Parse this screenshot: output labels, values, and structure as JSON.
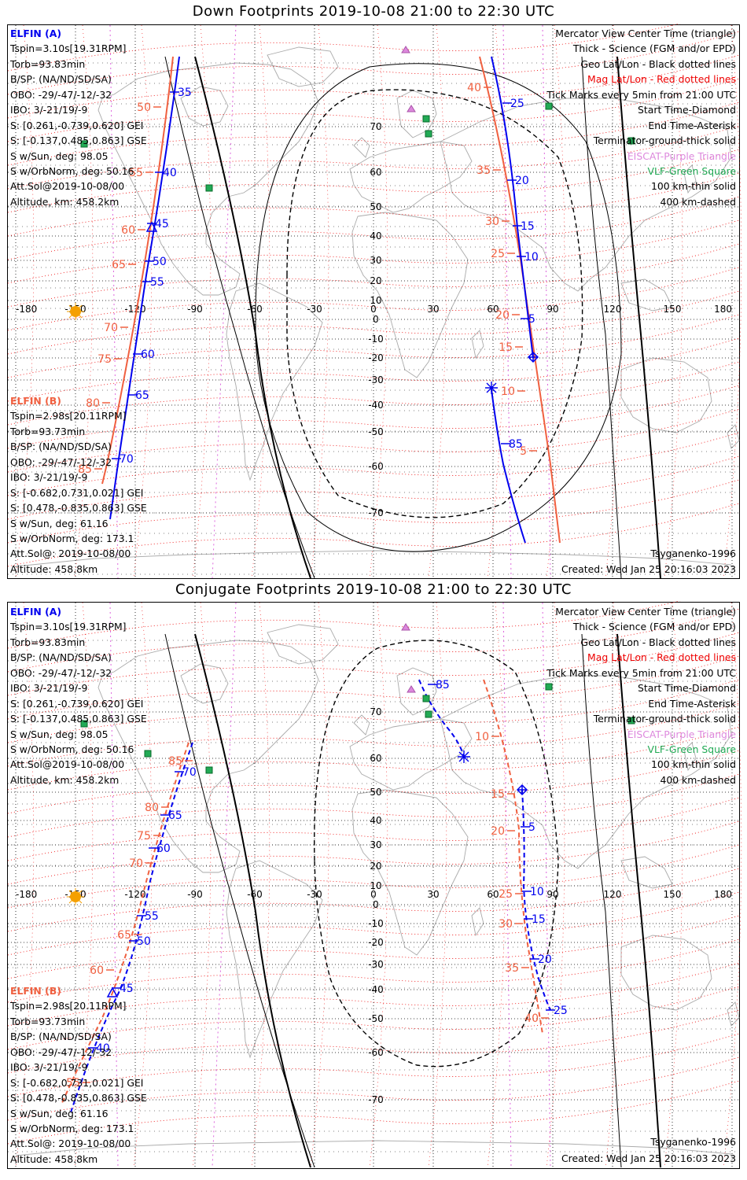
{
  "colors": {
    "elfin_a": "#0000ee",
    "elfin_b": "#f06040",
    "mag_grid": "#ee0000",
    "geo_grid": "#000000",
    "eiscat": "#dd88dd",
    "vlf": "#22aa55",
    "coast": "#aaaaaa",
    "sun": "#f5a000"
  },
  "panels": [
    {
      "title": "Down Footprints 2019-10-08 21:00 to 22:30 UTC",
      "left_a": [
        "ELFIN (A)",
        "Tspin=3.10s[19.31RPM]",
        "Torb=93.83min",
        "B/SP: (NA/ND/SD/SA)",
        "OBO: -29/-47/-12/-32",
        "IBO: 3/-21/19/-9",
        "S: [0.261,-0.739,0.620] GEI",
        "S: [-0.137,0.485,0.863] GSE",
        "S w/Sun, deg: 98.05",
        "S w/OrbNorm, deg: 50.16",
        "Att.Sol@2019-10-08/00",
        "Altitude, km: 458.2km"
      ],
      "left_b": [
        "ELFIN (B)",
        "Tspin=2.98s[20.11RPM]",
        "Torb=93.73min",
        "B/SP: (NA/ND/SD/SA)",
        "OBO: -29/-47/-12/-32",
        "IBO: 3/-21/19/-9",
        "S: [-0.682,0.731,0.021] GEI",
        "S: [0.478,-0.835,0.863] GSE",
        "S w/Sun, deg: 61.16",
        "S w/OrbNorm, deg: 173.1",
        "Att.Sol@: 2019-10-08/00",
        "Altitude: 458.8km"
      ],
      "legend": [
        "Mercator View Center Time (triangle)",
        "Thick - Science (FGM and/or EPD)",
        "Geo Lat/Lon - Black dotted lines",
        "Mag Lat/Lon - Red dotted lines",
        "Tick Marks every 5min from 21:00 UTC",
        "Start Time-Diamond",
        "End Time-Asterisk",
        "Terminator-ground-thick solid",
        "EISCAT-Purple Triangle",
        "VLF-Green Square",
        "100 km-thin solid",
        "400 km-dashed"
      ],
      "model": "Tsyganenko-1996",
      "created": "Created: Wed Jan 25 20:16:03 2023",
      "lon_labels": [
        "-180",
        "-150",
        "-120",
        "-90",
        "-60",
        "-30",
        "0",
        "30",
        "60",
        "90",
        "120",
        "150",
        "180"
      ],
      "lat_labels": [
        "70",
        "60",
        "50",
        "40",
        "30",
        "20",
        "10",
        "0",
        "-10",
        "-20",
        "-30",
        "-40",
        "-50",
        "-60",
        "-70"
      ],
      "ticks_a": [
        "35",
        "40",
        "45",
        "50",
        "55",
        "60",
        "65",
        "70",
        "25",
        "20",
        "15",
        "10",
        "5",
        "85"
      ],
      "ticks_b": [
        "50",
        "55",
        "60",
        "65",
        "70",
        "75",
        "80",
        "85",
        "40",
        "35",
        "30",
        "25",
        "20",
        "15",
        "10",
        "5"
      ]
    },
    {
      "title": "Conjugate Footprints 2019-10-08 21:00 to 22:30 UTC",
      "left_a": [
        "ELFIN (A)",
        "Tspin=3.10s[19.31RPM]",
        "Torb=93.83min",
        "B/SP: (NA/ND/SD/SA)",
        "OBO: -29/-47/-12/-32",
        "IBO: 3/-21/19/-9",
        "S: [0.261,-0.739,0.620] GEI",
        "S: [-0.137,0.485,0.863] GSE",
        "S w/Sun, deg: 98.05",
        "S w/OrbNorm, deg: 50.16",
        "Att.Sol@2019-10-08/00",
        "Altitude, km: 458.2km"
      ],
      "left_b": [
        "ELFIN (B)",
        "Tspin=2.98s[20.11RPM]",
        "Torb=93.73min",
        "B/SP: (NA/ND/SD/SA)",
        "OBO: -29/-47/-12/-32",
        "IBO: 3/-21/19/-9",
        "S: [-0.682,0.731,0.021] GEI",
        "S: [0.478,-0.835,0.863] GSE",
        "S w/Sun, deg: 61.16",
        "S w/OrbNorm, deg: 173.1",
        "Att.Sol@: 2019-10-08/00",
        "Altitude: 458.8km"
      ],
      "legend": [
        "Mercator View Center Time (triangle)",
        "Thick - Science (FGM and/or EPD)",
        "Geo Lat/Lon - Black dotted lines",
        "Mag Lat/Lon - Red dotted lines",
        "Tick Marks every 5min from 21:00 UTC",
        "Start Time-Diamond",
        "End Time-Asterisk",
        "Terminator-ground-thick solid",
        "EISCAT-Purple Triangle",
        "VLF-Green Square",
        "100 km-thin solid",
        "400 km-dashed"
      ],
      "model": "Tsyganenko-1996",
      "created": "Created: Wed Jan 25 20:16:03 2023",
      "lon_labels": [
        "-180",
        "-150",
        "-120",
        "-90",
        "-60",
        "-30",
        "0",
        "30",
        "60",
        "90",
        "120",
        "150",
        "180"
      ],
      "lat_labels": [
        "70",
        "60",
        "50",
        "40",
        "30",
        "20",
        "10",
        "0",
        "-10",
        "-20",
        "-30",
        "-40",
        "-50",
        "-60",
        "-70"
      ],
      "ticks_a": [
        "85",
        "70",
        "65",
        "60",
        "55",
        "50",
        "45",
        "40",
        "5",
        "10",
        "15",
        "20",
        "25"
      ],
      "ticks_b": [
        "85",
        "80",
        "75",
        "70",
        "65",
        "60",
        "55",
        "10",
        "15",
        "20",
        "25",
        "30",
        "35",
        "40"
      ]
    }
  ]
}
